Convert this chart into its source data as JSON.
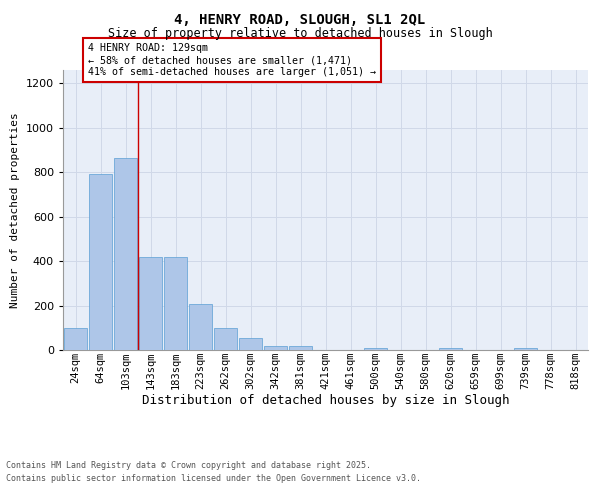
{
  "title1": "4, HENRY ROAD, SLOUGH, SL1 2QL",
  "title2": "Size of property relative to detached houses in Slough",
  "xlabel": "Distribution of detached houses by size in Slough",
  "ylabel": "Number of detached properties",
  "categories": [
    "24sqm",
    "64sqm",
    "103sqm",
    "143sqm",
    "183sqm",
    "223sqm",
    "262sqm",
    "302sqm",
    "342sqm",
    "381sqm",
    "421sqm",
    "461sqm",
    "500sqm",
    "540sqm",
    "580sqm",
    "620sqm",
    "659sqm",
    "699sqm",
    "739sqm",
    "778sqm",
    "818sqm"
  ],
  "values": [
    100,
    790,
    865,
    420,
    420,
    205,
    100,
    55,
    20,
    20,
    0,
    0,
    10,
    0,
    0,
    10,
    0,
    0,
    10,
    0,
    0
  ],
  "bar_color": "#aec6e8",
  "bar_edge_color": "#5a9fd4",
  "grid_color": "#d0d8e8",
  "bg_color": "#e8eef8",
  "vline_color": "#cc0000",
  "annotation_text": "4 HENRY ROAD: 129sqm\n← 58% of detached houses are smaller (1,471)\n41% of semi-detached houses are larger (1,051) →",
  "annotation_box_color": "#cc0000",
  "ylim": [
    0,
    1260
  ],
  "yticks": [
    0,
    200,
    400,
    600,
    800,
    1000,
    1200
  ],
  "footer1": "Contains HM Land Registry data © Crown copyright and database right 2025.",
  "footer2": "Contains public sector information licensed under the Open Government Licence v3.0."
}
